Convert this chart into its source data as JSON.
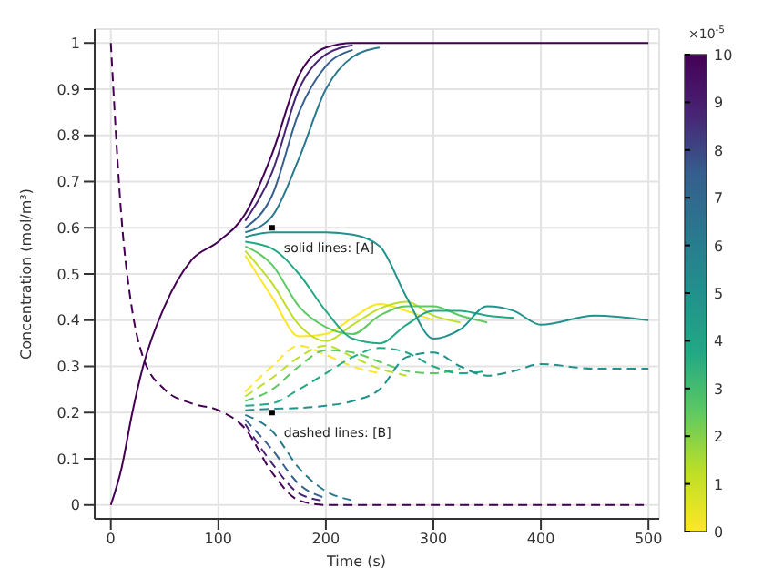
{
  "chart_data": {
    "type": "line",
    "xlabel": "Time (s)",
    "ylabel": "Concentration (mol/m³)",
    "clabel": "×10$^{-5}$",
    "clim": [
      0,
      10
    ],
    "cticks": [
      0,
      1,
      2,
      3,
      4,
      5,
      6,
      7,
      8,
      9,
      10
    ],
    "x": [
      0,
      10,
      20,
      30,
      50,
      75,
      100,
      125,
      150,
      175,
      200,
      225,
      250,
      275,
      300,
      325,
      350,
      375,
      400,
      450,
      500
    ],
    "xlim": [
      -15,
      510
    ],
    "xticks": [
      0,
      100,
      200,
      300,
      400,
      500
    ],
    "ylim": [
      -0.03,
      1.03
    ],
    "yticks": [
      0,
      0.1,
      0.2,
      0.3,
      0.4,
      0.5,
      0.6,
      0.7,
      0.8,
      0.9,
      1
    ],
    "grid": true,
    "marker": "none",
    "annotations": [
      {
        "text": "solid lines: [A]",
        "x": 150,
        "y": 0.6
      },
      {
        "text": "dashed lines: [B]",
        "x": 150,
        "y": 0.2
      }
    ],
    "series": [
      {
        "color": "#440154",
        "line_style": "solid",
        "values": [
          0,
          0.08,
          0.2,
          0.3,
          0.43,
          0.53,
          0.57,
          0.63,
          0.76,
          0.93,
          0.99,
          1,
          1,
          1,
          1,
          1,
          1,
          1,
          1,
          1,
          1
        ]
      },
      {
        "color": "#482475",
        "line_style": "solid",
        "values": [
          null,
          null,
          null,
          null,
          null,
          null,
          null,
          0.615,
          0.72,
          0.9,
          0.975,
          0.995,
          null,
          null,
          null,
          null,
          null,
          null,
          null,
          null,
          null
        ]
      },
      {
        "color": "#355f8d",
        "line_style": "solid",
        "values": [
          null,
          null,
          null,
          null,
          null,
          null,
          null,
          0.6,
          0.67,
          0.85,
          0.95,
          0.985,
          null,
          null,
          null,
          null,
          null,
          null,
          null,
          null,
          null
        ]
      },
      {
        "color": "#2a788e",
        "line_style": "solid",
        "values": [
          null,
          null,
          null,
          null,
          null,
          null,
          null,
          0.59,
          0.625,
          0.75,
          0.9,
          0.97,
          0.99,
          null,
          null,
          null,
          null,
          null,
          null,
          null,
          null
        ]
      },
      {
        "color": "#21918c",
        "line_style": "solid",
        "values": [
          null,
          null,
          null,
          null,
          null,
          null,
          null,
          0.58,
          0.59,
          0.59,
          0.59,
          0.585,
          0.56,
          0.45,
          0.36,
          0.38,
          0.43,
          0.42,
          0.39,
          0.41,
          0.4
        ]
      },
      {
        "color": "#22a884",
        "line_style": "solid",
        "values": [
          null,
          null,
          null,
          null,
          null,
          null,
          null,
          0.57,
          0.555,
          0.5,
          0.42,
          0.36,
          0.35,
          0.39,
          0.42,
          0.42,
          0.41,
          0.405,
          null,
          null,
          null
        ]
      },
      {
        "color": "#5ec962",
        "line_style": "solid",
        "values": [
          null,
          null,
          null,
          null,
          null,
          null,
          null,
          0.56,
          0.52,
          0.43,
          0.385,
          0.37,
          0.41,
          0.43,
          0.43,
          0.41,
          0.395,
          null,
          null,
          null,
          null
        ]
      },
      {
        "color": "#bddf26",
        "line_style": "solid",
        "values": [
          null,
          null,
          null,
          null,
          null,
          null,
          null,
          0.55,
          0.48,
          0.39,
          0.355,
          0.39,
          0.425,
          0.44,
          0.41,
          0.395,
          null,
          null,
          null,
          null,
          null
        ]
      },
      {
        "color": "#fde725",
        "line_style": "solid",
        "values": [
          null,
          null,
          null,
          null,
          null,
          null,
          null,
          0.54,
          0.45,
          0.365,
          0.37,
          0.405,
          0.435,
          0.42,
          0.4,
          null,
          null,
          null,
          null,
          null,
          null
        ]
      },
      {
        "color": "#440154",
        "line_style": "dashed",
        "values": [
          1,
          0.62,
          0.42,
          0.32,
          0.25,
          0.22,
          0.205,
          0.165,
          0.07,
          0.01,
          0,
          0,
          0,
          0,
          0,
          0,
          0,
          0,
          0,
          0,
          0
        ]
      },
      {
        "color": "#482475",
        "line_style": "dashed",
        "values": [
          null,
          null,
          null,
          null,
          null,
          null,
          null,
          0.175,
          0.09,
          0.025,
          0.008,
          null,
          null,
          null,
          null,
          null,
          null,
          null,
          null,
          null,
          null
        ]
      },
      {
        "color": "#355f8d",
        "line_style": "dashed",
        "values": [
          null,
          null,
          null,
          null,
          null,
          null,
          null,
          0.185,
          0.12,
          0.045,
          0.015,
          null,
          null,
          null,
          null,
          null,
          null,
          null,
          null,
          null,
          null
        ]
      },
      {
        "color": "#2a788e",
        "line_style": "dashed",
        "values": [
          null,
          null,
          null,
          null,
          null,
          null,
          null,
          0.195,
          0.16,
          0.08,
          0.03,
          0.01,
          null,
          null,
          null,
          null,
          null,
          null,
          null,
          null,
          null
        ]
      },
      {
        "color": "#21918c",
        "line_style": "dashed",
        "values": [
          null,
          null,
          null,
          null,
          null,
          null,
          null,
          0.205,
          0.208,
          0.21,
          0.215,
          0.225,
          0.25,
          0.32,
          0.33,
          0.3,
          0.28,
          0.29,
          0.305,
          0.295,
          0.295
        ]
      },
      {
        "color": "#22a884",
        "line_style": "dashed",
        "values": [
          null,
          null,
          null,
          null,
          null,
          null,
          null,
          0.215,
          0.22,
          0.25,
          0.285,
          0.32,
          0.34,
          0.33,
          0.3,
          0.285,
          0.29,
          null,
          null,
          null,
          null
        ]
      },
      {
        "color": "#5ec962",
        "line_style": "dashed",
        "values": [
          null,
          null,
          null,
          null,
          null,
          null,
          null,
          0.225,
          0.25,
          0.3,
          0.335,
          0.33,
          0.31,
          0.29,
          0.285,
          0.295,
          null,
          null,
          null,
          null,
          null
        ]
      },
      {
        "color": "#bddf26",
        "line_style": "dashed",
        "values": [
          null,
          null,
          null,
          null,
          null,
          null,
          null,
          0.235,
          0.275,
          0.32,
          0.345,
          0.32,
          0.295,
          0.28,
          null,
          null,
          null,
          null,
          null,
          null,
          null
        ]
      },
      {
        "color": "#fde725",
        "line_style": "dashed",
        "values": [
          null,
          null,
          null,
          null,
          null,
          null,
          null,
          0.245,
          0.3,
          0.345,
          0.325,
          0.3,
          0.285,
          null,
          null,
          null,
          null,
          null,
          null,
          null,
          null
        ]
      }
    ]
  }
}
